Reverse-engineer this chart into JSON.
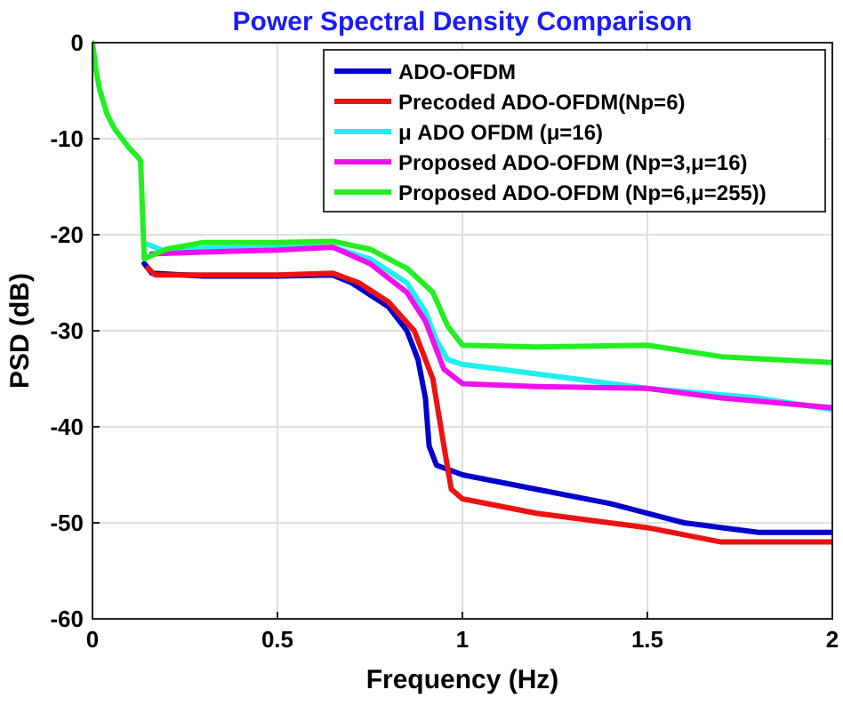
{
  "chart_data": {
    "type": "line",
    "title": "Power Spectral Density Comparison",
    "xlabel": "Frequency (Hz)",
    "ylabel": "PSD (dB)",
    "xlim": [
      0,
      2
    ],
    "xticks": [
      0,
      0.5,
      1,
      1.5,
      2
    ],
    "ylim": [
      -60,
      0
    ],
    "yticks": [
      -60,
      -50,
      -40,
      -30,
      -20,
      -10,
      0
    ],
    "grid": true,
    "legend": "top right",
    "line_style": "solid",
    "series": [
      {
        "name": "ADO-OFDM",
        "color": "#0000cc",
        "x": [
          0.14,
          0.16,
          0.3,
          0.5,
          0.65,
          0.7,
          0.8,
          0.85,
          0.88,
          0.9,
          0.91,
          0.93,
          1.0,
          1.2,
          1.4,
          1.6,
          1.8,
          2
        ],
        "values": [
          -23,
          -24,
          -24.3,
          -24.3,
          -24.2,
          -25,
          -27.5,
          -30,
          -33,
          -37,
          -42,
          -44,
          -45,
          -46.5,
          -48,
          -50,
          -51,
          -51
        ]
      },
      {
        "name": "Precoded ADO-OFDM(Np=6)",
        "color": "#ee1111",
        "x": [
          0.15,
          0.17,
          0.3,
          0.5,
          0.65,
          0.72,
          0.8,
          0.87,
          0.92,
          0.95,
          0.97,
          1.0,
          1.2,
          1.5,
          1.7,
          2
        ],
        "values": [
          -23.5,
          -24.2,
          -24.2,
          -24.2,
          -24,
          -25,
          -27,
          -30,
          -35,
          -42,
          -46.5,
          -47.5,
          -49,
          -50.5,
          -52,
          -52
        ]
      },
      {
        "name": "μ ADO OFDM (μ=16)",
        "color": "#22eeee",
        "x": [
          0.15,
          0.2,
          0.3,
          0.5,
          0.65,
          0.75,
          0.85,
          0.9,
          0.93,
          0.96,
          1.0,
          1.2,
          1.5,
          1.8,
          2
        ],
        "values": [
          -21,
          -21.8,
          -21.4,
          -21.3,
          -21.3,
          -22.5,
          -25,
          -28,
          -31,
          -33,
          -33.5,
          -34.5,
          -36,
          -37,
          -38.2
        ]
      },
      {
        "name": "Proposed ADO-OFDM (Np=3,μ=16)",
        "color": "#ee11ee",
        "x": [
          0.16,
          0.3,
          0.5,
          0.65,
          0.75,
          0.85,
          0.9,
          0.95,
          1.0,
          1.2,
          1.5,
          1.7,
          2
        ],
        "values": [
          -22,
          -21.8,
          -21.6,
          -21.3,
          -23,
          -26,
          -29,
          -34,
          -35.5,
          -35.8,
          -36,
          -37,
          -38
        ]
      },
      {
        "name": "Proposed ADO-OFDM (Np=6,μ=255))",
        "color": "#22ee22",
        "x": [
          0,
          0.01,
          0.02,
          0.04,
          0.06,
          0.08,
          0.1,
          0.12,
          0.13,
          0.14,
          0.2,
          0.3,
          0.5,
          0.65,
          0.75,
          0.85,
          0.92,
          0.96,
          1.0,
          1.2,
          1.5,
          1.7,
          2
        ],
        "values": [
          0,
          -3,
          -5,
          -7.5,
          -9,
          -10,
          -11,
          -11.8,
          -12.3,
          -22.5,
          -21.5,
          -20.8,
          -20.8,
          -20.7,
          -21.5,
          -23.5,
          -26,
          -29.5,
          -31.5,
          -31.7,
          -31.5,
          -32.7,
          -33.3
        ]
      }
    ]
  }
}
